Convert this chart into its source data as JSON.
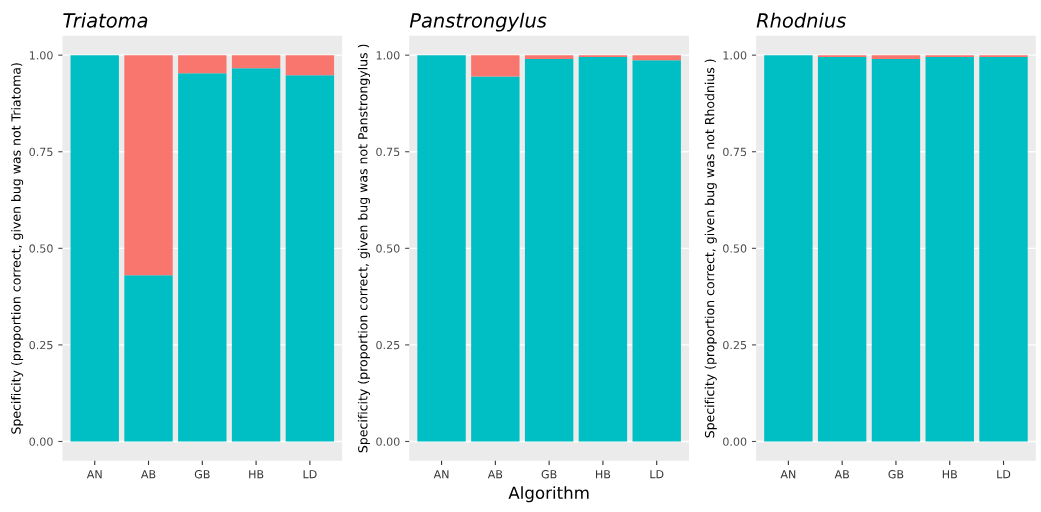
{
  "chart_data": [
    {
      "type": "bar",
      "title": "Triatoma",
      "ylabel": "Specificity (proportion correct, given bug was not Triatoma)",
      "categories": [
        "AN",
        "AB",
        "GB",
        "HB",
        "LD"
      ],
      "stacked": true,
      "grid": "y",
      "series": [
        {
          "color": "#00bfc4",
          "values": [
            1.0,
            0.43,
            0.953,
            0.966,
            0.948
          ]
        },
        {
          "color": "#f8766d",
          "values": [
            0.0,
            0.57,
            0.047,
            0.034,
            0.052
          ]
        }
      ],
      "ylim": [
        -0.05,
        1.05
      ],
      "yticks": [
        {
          "value": 0,
          "label": "0.00"
        },
        {
          "value": 0.25,
          "label": "0.25"
        },
        {
          "value": 0.5,
          "label": "0.50"
        },
        {
          "value": 0.75,
          "label": "0.75"
        },
        {
          "value": 1,
          "label": "1.00"
        }
      ]
    },
    {
      "type": "bar",
      "title": "Panstrongylus",
      "ylabel": "Specificity (proportion correct, given bug was not Panstrongylus )",
      "xlabel": "Algorithm",
      "categories": [
        "AN",
        "AB",
        "GB",
        "HB",
        "LD"
      ],
      "stacked": true,
      "grid": "y",
      "series": [
        {
          "color": "#00bfc4",
          "values": [
            1.0,
            0.945,
            0.99,
            0.995,
            0.987
          ]
        },
        {
          "color": "#f8766d",
          "values": [
            0.0,
            0.055,
            0.01,
            0.005,
            0.013
          ]
        }
      ],
      "ylim": [
        -0.05,
        1.05
      ],
      "yticks": [
        {
          "value": 0,
          "label": "0.00"
        },
        {
          "value": 0.25,
          "label": "0.25"
        },
        {
          "value": 0.5,
          "label": "0.50"
        },
        {
          "value": 0.75,
          "label": "0.75"
        },
        {
          "value": 1,
          "label": "1.00"
        }
      ]
    },
    {
      "type": "bar",
      "title": "Rhodnius",
      "ylabel": "Specificity (proportion correct, given bug was not Rhodnius )",
      "categories": [
        "AN",
        "AB",
        "GB",
        "HB",
        "LD"
      ],
      "stacked": true,
      "grid": "y",
      "series": [
        {
          "color": "#00bfc4",
          "values": [
            1.0,
            0.995,
            0.99,
            0.995,
            0.995
          ]
        },
        {
          "color": "#f8766d",
          "values": [
            0.0,
            0.005,
            0.01,
            0.005,
            0.005
          ]
        }
      ],
      "ylim": [
        -0.05,
        1.05
      ],
      "yticks": [
        {
          "value": 0,
          "label": "0.00"
        },
        {
          "value": 0.25,
          "label": "0.25"
        },
        {
          "value": 0.5,
          "label": "0.50"
        },
        {
          "value": 0.75,
          "label": "0.75"
        },
        {
          "value": 1,
          "label": "1.00"
        }
      ]
    }
  ]
}
